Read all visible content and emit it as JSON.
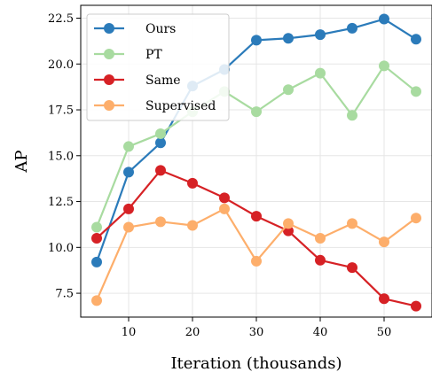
{
  "chart_data": {
    "type": "line",
    "xlabel": "Iteration (thousands)",
    "ylabel": "AP",
    "x": [
      5,
      10,
      15,
      20,
      25,
      30,
      35,
      40,
      45,
      50,
      55
    ],
    "xlim": [
      2.5,
      57.5
    ],
    "ylim": [
      6.2,
      23.2
    ],
    "xticks": [
      10,
      20,
      30,
      40,
      50
    ],
    "yticks": [
      7.5,
      10.0,
      12.5,
      15.0,
      17.5,
      20.0,
      22.5
    ],
    "xtick_labels": [
      "10",
      "20",
      "30",
      "40",
      "50"
    ],
    "ytick_labels": [
      "7.5",
      "10.0",
      "12.5",
      "15.0",
      "17.5",
      "20.0",
      "22.5"
    ],
    "grid": true,
    "legend_position": "top-left",
    "series": [
      {
        "name": "Ours",
        "color": "#2b7bba",
        "values": [
          9.2,
          14.1,
          15.7,
          18.8,
          19.7,
          21.3,
          21.4,
          21.6,
          21.95,
          22.45,
          21.35
        ]
      },
      {
        "name": "PT",
        "color": "#a8dba0",
        "values": [
          11.1,
          15.5,
          16.2,
          17.4,
          18.5,
          17.4,
          18.6,
          19.5,
          17.2,
          19.9,
          18.5
        ]
      },
      {
        "name": "Same",
        "color": "#d62125",
        "values": [
          10.5,
          12.1,
          14.2,
          13.5,
          12.7,
          11.7,
          10.9,
          9.3,
          8.9,
          7.2,
          6.8
        ]
      },
      {
        "name": "Supervised",
        "color": "#fdae6b",
        "values": [
          7.1,
          11.1,
          11.4,
          11.2,
          12.1,
          9.25,
          11.3,
          10.5,
          11.3,
          10.3,
          11.6
        ]
      }
    ]
  }
}
